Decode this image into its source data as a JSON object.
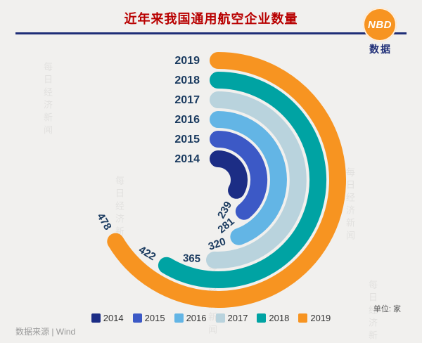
{
  "header": {
    "logo": {
      "text": "NBD",
      "subtext": "数据",
      "circle_color": "#f79421",
      "subtext_color": "#1f2e77"
    },
    "underline_color": "#1f2e77",
    "title_color": "#b80000"
  },
  "chart_data": {
    "type": "bar",
    "variant": "radial",
    "title": "近年来我国通用航空企业数量",
    "categories": [
      "2014",
      "2015",
      "2016",
      "2017",
      "2018",
      "2019"
    ],
    "values": [
      239,
      281,
      320,
      365,
      422,
      478
    ],
    "colors": [
      "#1c2d85",
      "#3c59c6",
      "#63b5e5",
      "#b9d3dd",
      "#00a3a3",
      "#f79421"
    ],
    "unit_label": "单位: 家",
    "legend_position": "bottom",
    "layout": {
      "start_angle_deg": 0,
      "direction": "clockwise",
      "deg_per_unit": 0.5,
      "inner_radius": 30,
      "ring_step": 28,
      "ring_width": 24,
      "center": [
        310,
        256
      ]
    }
  },
  "watermark": {
    "text": "每日经济新闻"
  },
  "footer": {
    "source": "数据来源 | Wind"
  }
}
